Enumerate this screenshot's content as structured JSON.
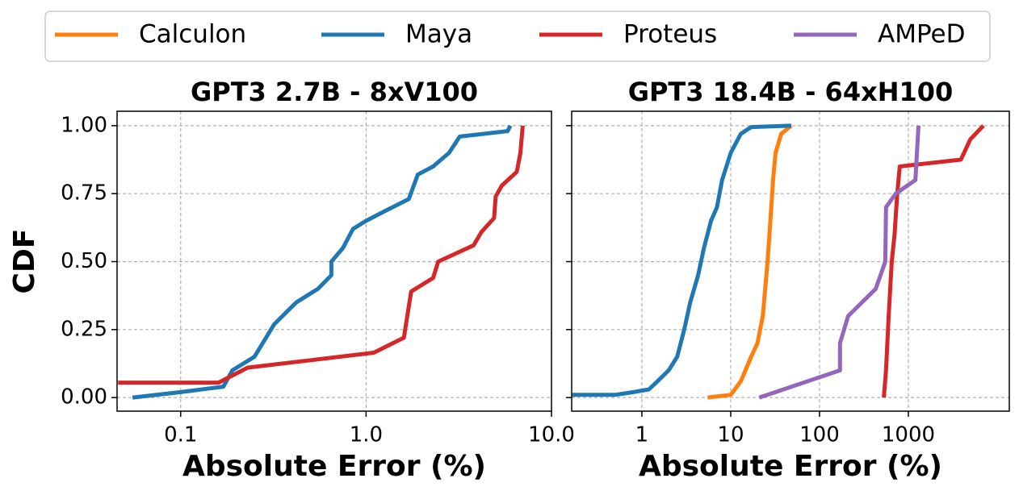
{
  "chart_data": [
    {
      "type": "line",
      "title": "GPT3 2.7B - 8xV100",
      "xlabel": "Absolute Error (%)",
      "ylabel": "CDF",
      "xscale": "log",
      "grid": true,
      "xlim": [
        0.0454,
        10
      ],
      "xticks": [
        0.1,
        {
          "value": 1,
          "label": "1.0"
        },
        {
          "value": 10,
          "label": "10.0"
        }
      ],
      "ylim": [
        -0.05,
        1.053
      ],
      "yticks": [
        {
          "value": 0,
          "label": "0.00"
        },
        0.25,
        {
          "value": 0.5,
          "label": "0.50"
        },
        0.75,
        {
          "value": 1,
          "label": "1.00"
        }
      ],
      "series": [
        {
          "name": "Maya",
          "color": "#1f77b4",
          "x": [
            0.055,
            0.1,
            0.17,
            0.19,
            0.25,
            0.32,
            0.42,
            0.55,
            0.65,
            0.65,
            0.75,
            0.85,
            1.0,
            1.3,
            1.7,
            1.9,
            2.3,
            2.8,
            3.2,
            5.8,
            6.0
          ],
          "values": [
            0,
            0.02,
            0.04,
            0.1,
            0.15,
            0.27,
            0.35,
            0.4,
            0.45,
            0.5,
            0.55,
            0.62,
            0.65,
            0.69,
            0.73,
            0.82,
            0.85,
            0.9,
            0.96,
            0.98,
            1.0
          ]
        },
        {
          "name": "Proteus",
          "color": "#d62728",
          "x": [
            0.046,
            0.16,
            0.23,
            1.1,
            1.6,
            1.75,
            2.3,
            2.45,
            3.8,
            4.2,
            4.9,
            5.0,
            5.4,
            6.5,
            6.8,
            7.0
          ],
          "values": [
            0.055,
            0.055,
            0.11,
            0.165,
            0.22,
            0.39,
            0.44,
            0.5,
            0.56,
            0.61,
            0.66,
            0.74,
            0.78,
            0.83,
            0.9,
            1.0
          ]
        }
      ]
    },
    {
      "type": "line",
      "title": "GPT3 18.4B - 64xH100",
      "xlabel": "Absolute Error (%)",
      "xscale": "log",
      "grid": true,
      "xlim": [
        0.162,
        13700
      ],
      "xticks": [
        1,
        10,
        100,
        1000
      ],
      "ylim": [
        -0.05,
        1.053
      ],
      "yticks": [
        0,
        0.25,
        0.5,
        0.75,
        1
      ],
      "series": [
        {
          "name": "Calculon",
          "color": "#ff7f0e",
          "x": [
            5.5,
            10,
            13,
            17,
            20,
            23,
            26,
            28,
            30,
            32,
            37,
            48
          ],
          "values": [
            0,
            0.01,
            0.06,
            0.15,
            0.2,
            0.3,
            0.5,
            0.65,
            0.8,
            0.9,
            0.97,
            1.0
          ]
        },
        {
          "name": "Maya",
          "color": "#1f77b4",
          "x": [
            0.165,
            0.5,
            0.8,
            1.2,
            1.5,
            2,
            2.5,
            3,
            3.5,
            4.3,
            5,
            6,
            7,
            8,
            10,
            13,
            17,
            48
          ],
          "values": [
            0.01,
            0.01,
            0.02,
            0.03,
            0.06,
            0.1,
            0.15,
            0.25,
            0.35,
            0.45,
            0.55,
            0.65,
            0.7,
            0.8,
            0.9,
            0.97,
            0.995,
            1.0
          ]
        },
        {
          "name": "Proteus",
          "color": "#d62728",
          "x": [
            530,
            560,
            600,
            650,
            700,
            750,
            800,
            3900,
            5000,
            7000
          ],
          "values": [
            0,
            0.1,
            0.3,
            0.5,
            0.6,
            0.75,
            0.85,
            0.875,
            0.95,
            1.0
          ]
        },
        {
          "name": "AMPeD",
          "color": "#9467bd",
          "x": [
            21,
            170,
            170,
            210,
            430,
            550,
            560,
            720,
            1200,
            1300
          ],
          "values": [
            0,
            0.1,
            0.2,
            0.3,
            0.4,
            0.5,
            0.7,
            0.75,
            0.8,
            1.0
          ]
        }
      ]
    }
  ]
}
